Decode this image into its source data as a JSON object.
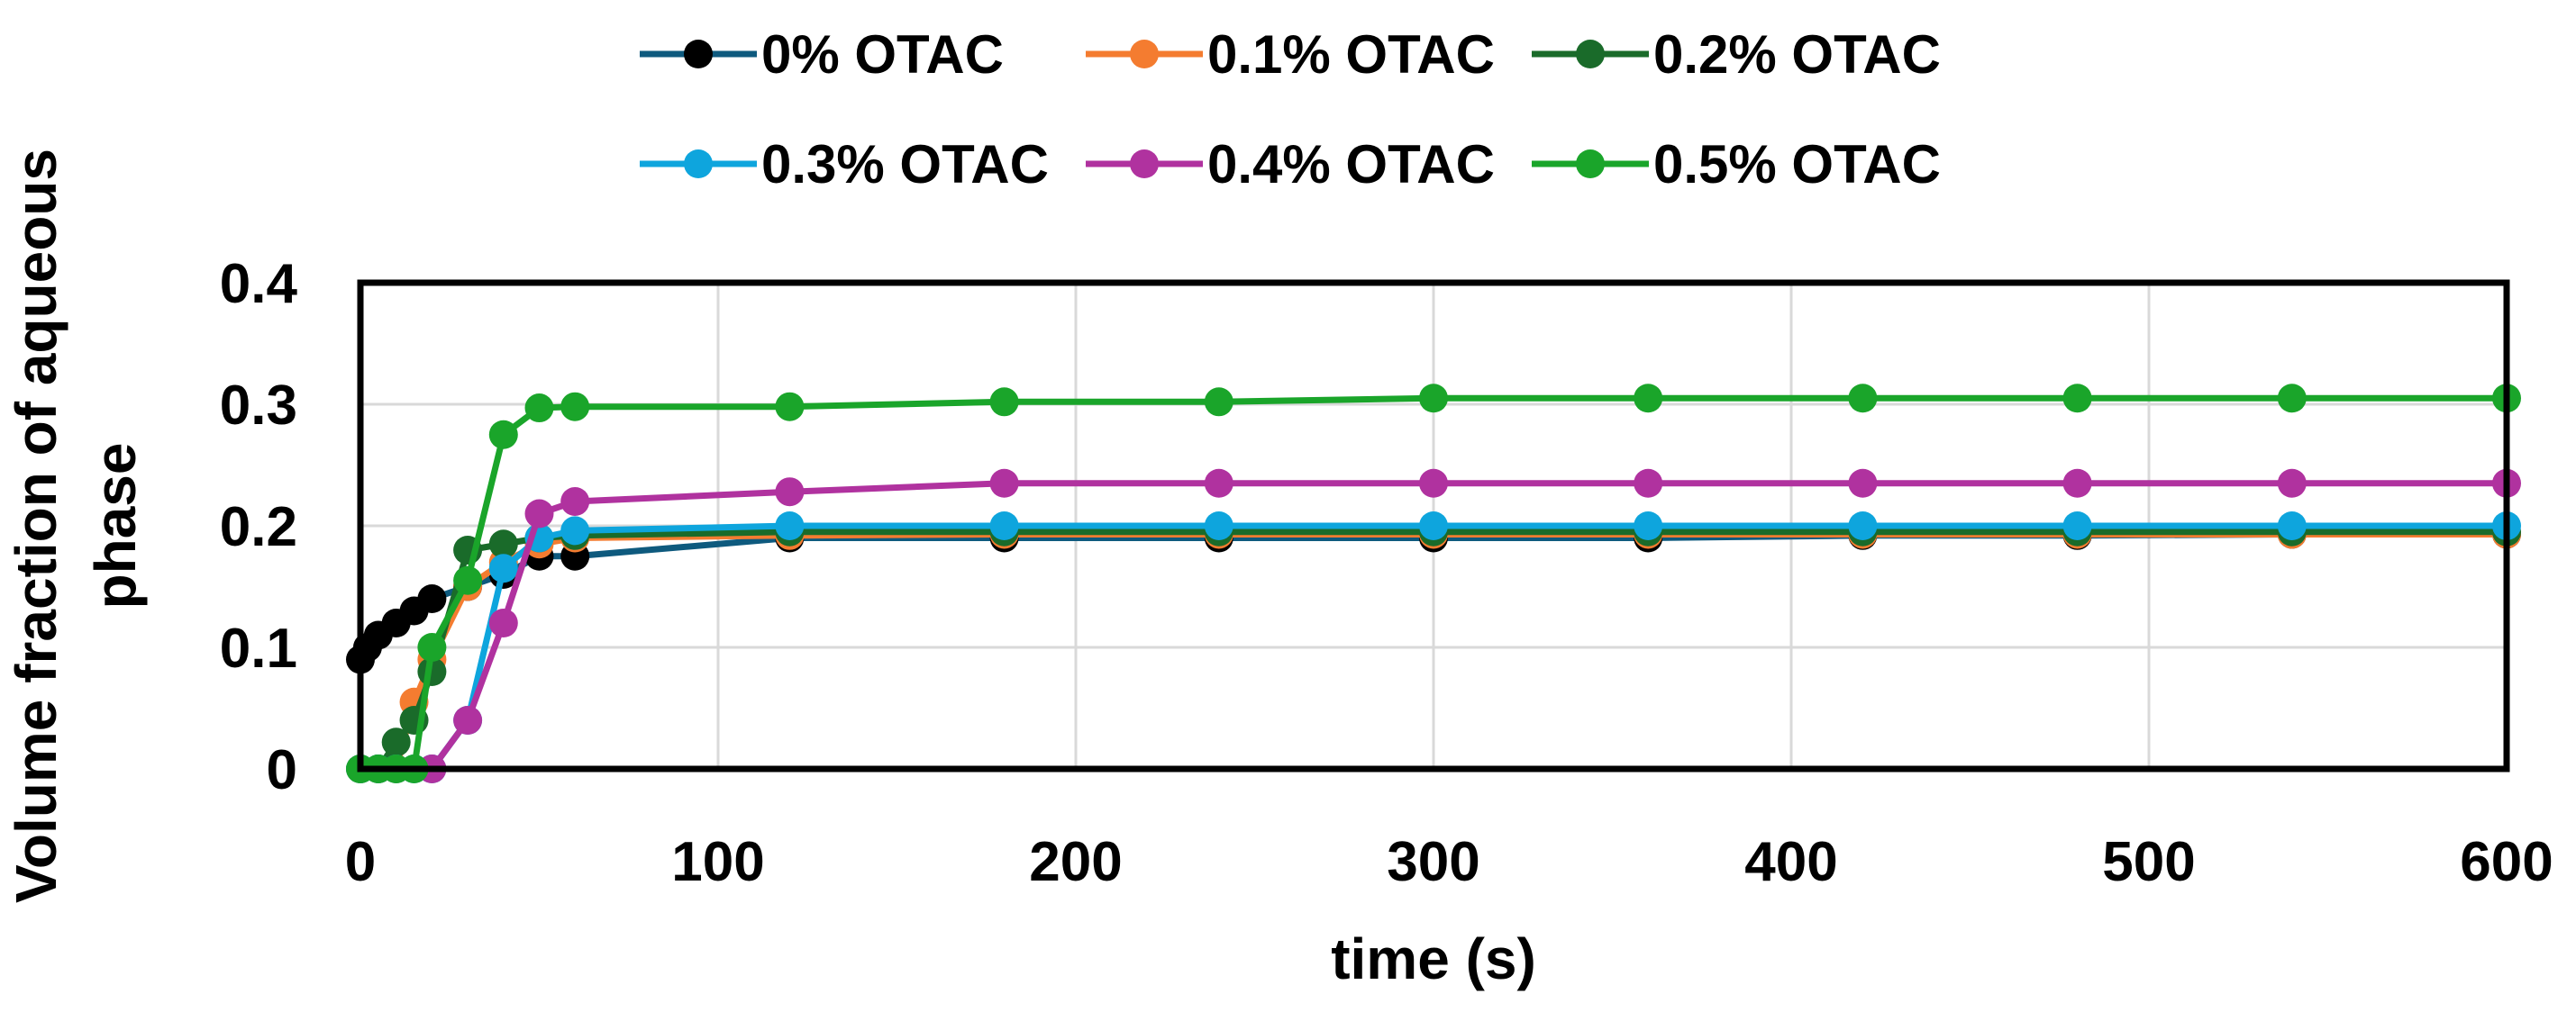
{
  "chart_data": {
    "type": "line",
    "title": "",
    "xlabel": "time (s)",
    "ylabel_lines": [
      "Volume fraction of aqueous",
      "phase"
    ],
    "xlim": [
      0,
      600
    ],
    "ylim": [
      0,
      0.4
    ],
    "x_ticks": [
      0,
      100,
      200,
      300,
      400,
      500,
      600
    ],
    "x_tick_labels": [
      "0",
      "100",
      "200",
      "300",
      "400",
      "500",
      "600"
    ],
    "y_ticks": [
      0,
      0.1,
      0.2,
      0.3,
      0.4
    ],
    "y_tick_labels": [
      "0",
      "0.1",
      "0.2",
      "0.3",
      "0.4"
    ],
    "grid": true,
    "legend_position": "top",
    "series": [
      {
        "name": "0% OTAC",
        "color": "#0e5a7e",
        "marker_color": "#000000",
        "x": [
          0,
          2,
          5,
          10,
          15,
          20,
          30,
          40,
          50,
          60,
          120,
          180,
          240,
          300,
          360,
          420,
          480,
          540,
          600
        ],
        "y": [
          0.09,
          0.1,
          0.11,
          0.12,
          0.13,
          0.14,
          0.15,
          0.16,
          0.175,
          0.175,
          0.19,
          0.19,
          0.19,
          0.19,
          0.19,
          0.192,
          0.192,
          0.193,
          0.193
        ]
      },
      {
        "name": "0.1% OTAC",
        "color": "#f47c30",
        "marker_color": "#f47c30",
        "x": [
          0,
          5,
          10,
          15,
          20,
          30,
          40,
          50,
          60,
          120,
          180,
          240,
          300,
          360,
          420,
          480,
          540,
          600
        ],
        "y": [
          0,
          0,
          0,
          0.055,
          0.09,
          0.15,
          0.17,
          0.185,
          0.19,
          0.192,
          0.193,
          0.193,
          0.193,
          0.193,
          0.193,
          0.193,
          0.193,
          0.193
        ]
      },
      {
        "name": "0.2% OTAC",
        "color": "#1a6b2a",
        "marker_color": "#1a6b2a",
        "x": [
          0,
          5,
          10,
          15,
          20,
          30,
          40,
          50,
          60,
          120,
          180,
          240,
          300,
          360,
          420,
          480,
          540,
          600
        ],
        "y": [
          0,
          0,
          0.022,
          0.04,
          0.08,
          0.18,
          0.185,
          0.19,
          0.192,
          0.195,
          0.195,
          0.195,
          0.195,
          0.195,
          0.195,
          0.195,
          0.195,
          0.195
        ]
      },
      {
        "name": "0.3% OTAC",
        "color": "#0ea5dd",
        "marker_color": "#0ea5dd",
        "x": [
          0,
          5,
          10,
          15,
          20,
          30,
          40,
          50,
          60,
          120,
          180,
          240,
          300,
          360,
          420,
          480,
          540,
          600
        ],
        "y": [
          0,
          0,
          0,
          0,
          0,
          0.04,
          0.165,
          0.19,
          0.196,
          0.2,
          0.2,
          0.2,
          0.2,
          0.2,
          0.2,
          0.2,
          0.2,
          0.2
        ]
      },
      {
        "name": "0.4% OTAC",
        "color": "#b0329f",
        "marker_color": "#b0329f",
        "x": [
          20,
          30,
          40,
          50,
          60,
          120,
          180,
          240,
          300,
          360,
          420,
          480,
          540,
          600
        ],
        "y": [
          0,
          0.04,
          0.12,
          0.21,
          0.22,
          0.228,
          0.235,
          0.235,
          0.235,
          0.235,
          0.235,
          0.235,
          0.235,
          0.235
        ]
      },
      {
        "name": "0.5% OTAC",
        "color": "#1aa52a",
        "marker_color": "#1aa52a",
        "x": [
          0,
          5,
          10,
          15,
          20,
          30,
          40,
          50,
          60,
          120,
          180,
          240,
          300,
          360,
          420,
          480,
          540,
          600
        ],
        "y": [
          0,
          0,
          0,
          0,
          0.1,
          0.155,
          0.275,
          0.297,
          0.298,
          0.298,
          0.302,
          0.302,
          0.305,
          0.305,
          0.305,
          0.305,
          0.305,
          0.305
        ]
      }
    ]
  }
}
